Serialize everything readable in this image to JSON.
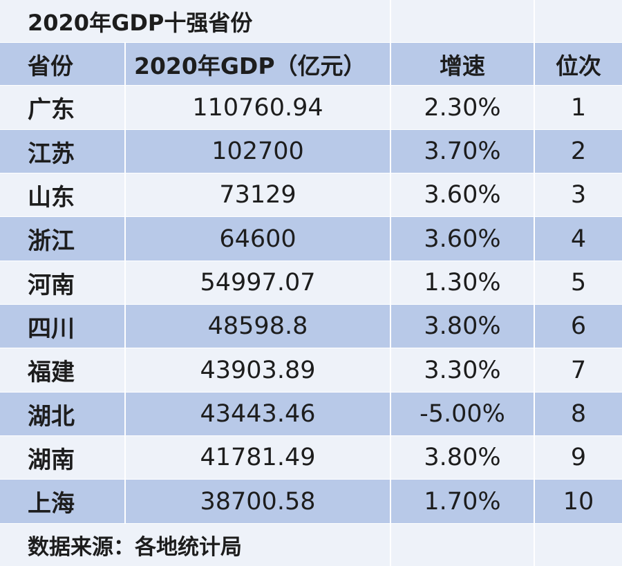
{
  "title": "2020年GDP十强省份",
  "headers": [
    "省份",
    "2020年GDP（亿元）",
    "增速",
    "位次"
  ],
  "rows": [
    {
      "province": "广东",
      "gdp": "110760.94",
      "growth": "2.30%",
      "rank": "1"
    },
    {
      "province": "江苏",
      "gdp": "102700",
      "growth": "3.70%",
      "rank": "2"
    },
    {
      "province": "山东",
      "gdp": "73129",
      "growth": "3.60%",
      "rank": "3"
    },
    {
      "province": "浙江",
      "gdp": "64600",
      "growth": "3.60%",
      "rank": "4"
    },
    {
      "province": "河南",
      "gdp": "54997.07",
      "growth": "1.30%",
      "rank": "5"
    },
    {
      "province": "四川",
      "gdp": "48598.8",
      "growth": "3.80%",
      "rank": "6"
    },
    {
      "province": "福建",
      "gdp": "43903.89",
      "growth": "3.30%",
      "rank": "7"
    },
    {
      "province": "湖北",
      "gdp": "43443.46",
      "growth": "-5.00%",
      "rank": "8"
    },
    {
      "province": "湖南",
      "gdp": "41781.49",
      "growth": "3.80%",
      "rank": "9"
    },
    {
      "province": "上海",
      "gdp": "38700.58",
      "growth": "1.70%",
      "rank": "10"
    }
  ],
  "source": "数据来源：各地统计局",
  "colors": {
    "band": "#b8c9e8",
    "light": "#eef2f9",
    "grid": "#ffffff"
  }
}
